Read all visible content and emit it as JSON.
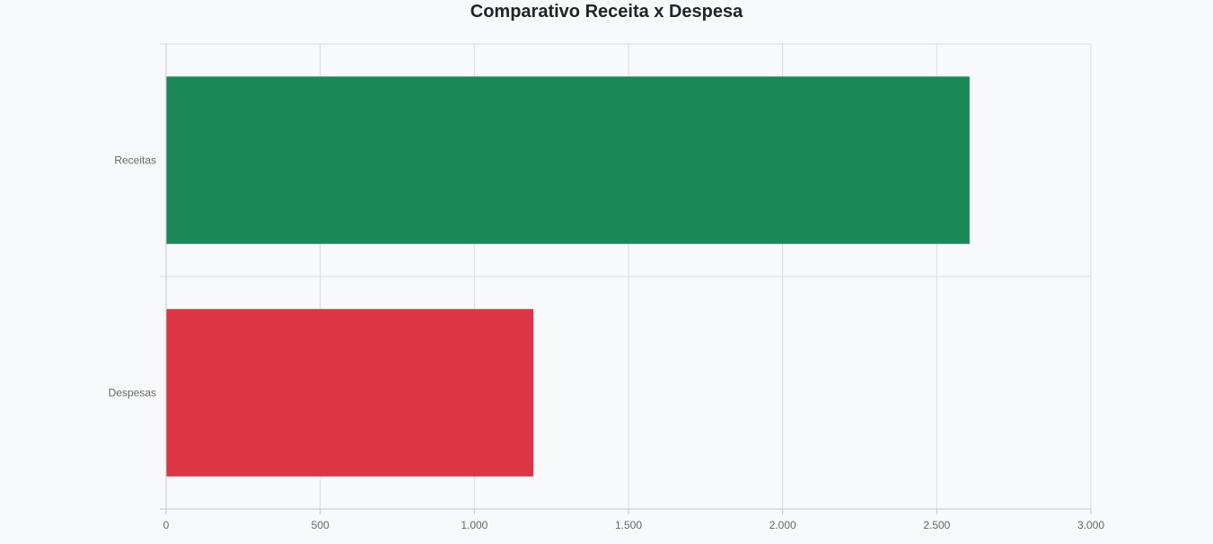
{
  "chart_data": {
    "type": "bar",
    "orientation": "horizontal",
    "title": "Comparativo Receita x Despesa",
    "categories": [
      "Receitas",
      "Despesas"
    ],
    "values": [
      2605,
      1190
    ],
    "colors": [
      "#1a8957",
      "#dc3545"
    ],
    "xlim": [
      0,
      3000
    ],
    "x_ticks": [
      0,
      500,
      1000,
      1500,
      2000,
      2500,
      3000
    ],
    "x_tick_labels": [
      "0",
      "500",
      "1.000",
      "1.500",
      "2.000",
      "2.500",
      "3.000"
    ],
    "grid": true,
    "legend": "none"
  }
}
